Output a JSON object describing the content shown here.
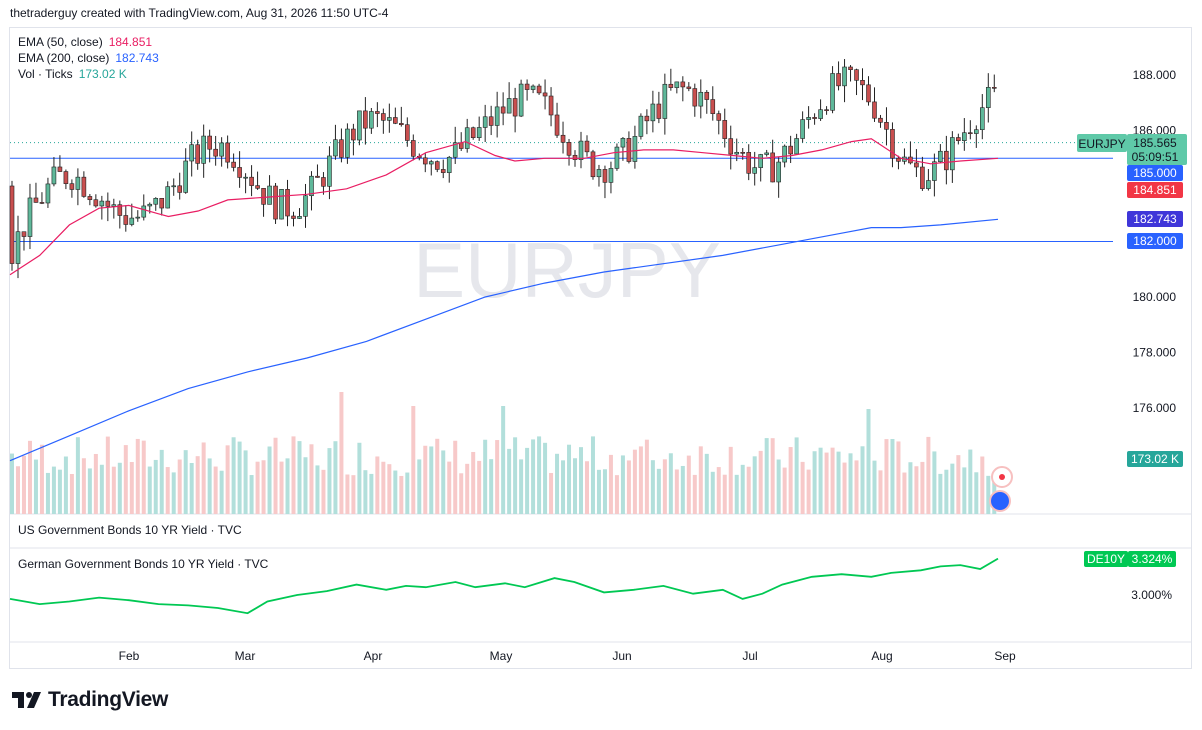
{
  "header": {
    "text": "thetraderguy created with TradingView.com, Aug 31, 2026 11:50 UTC-4"
  },
  "watermark": "EURJPY",
  "legend": [
    {
      "label": "EMA (50, close)",
      "value": "184.851",
      "color": "#e91e63"
    },
    {
      "label": "EMA (200, close)",
      "value": "182.743",
      "color": "#2962ff"
    },
    {
      "label": "Vol · Ticks",
      "value": "173.02 K",
      "color": "#26a69a"
    }
  ],
  "pane2_title": "US Government Bonds 10 YR Yield · TVC",
  "pane3_title": "German Government Bonds 10 YR Yield · TVC",
  "logo": {
    "text": "TradingView",
    "icon": "tradingview-logo-icon"
  },
  "price_axis": {
    "ticks": [
      "188.000",
      "186.000",
      "180.000",
      "178.000",
      "176.000"
    ]
  },
  "yield_axis": {
    "ticks": [
      "3.000%"
    ]
  },
  "time_axis": {
    "ticks": [
      "Feb",
      "Mar",
      "Apr",
      "May",
      "Jun",
      "Jul",
      "Aug",
      "Sep"
    ]
  },
  "labels": {
    "symbol": {
      "name": "EURJPY",
      "price": "185.565",
      "countdown": "05:09:51",
      "color": "#5fc9a8"
    },
    "level_185": {
      "text": "185.000",
      "color": "#2962ff"
    },
    "ema50": {
      "text": "184.851",
      "color": "#f23645"
    },
    "ema200": {
      "text": "182.743",
      "color": "#3f36d9"
    },
    "level_182": {
      "text": "182.000",
      "color": "#2962ff"
    },
    "volume": {
      "text": "173.02 K",
      "color": "#26a69a"
    },
    "de10y": {
      "name": "DE10Y",
      "value": "3.324%",
      "color": "#00c853"
    }
  },
  "chart_data": [
    {
      "type": "candlestick",
      "symbol": "EURJPY",
      "x_range": [
        "2026-01",
        "2026-08-31"
      ],
      "ylim": [
        173.0,
        189.0
      ],
      "horizontal_lines": [
        185.0,
        182.0
      ],
      "indicators": [
        {
          "name": "EMA (50, close)",
          "last": 184.851,
          "points": [
            [
              0,
              180.8
            ],
            [
              30,
              181.5
            ],
            [
              60,
              182.6
            ],
            [
              90,
              183.2
            ],
            [
              120,
              183.3
            ],
            [
              150,
              183.0
            ],
            [
              160,
              182.9
            ],
            [
              190,
              183.1
            ],
            [
              220,
              183.5
            ],
            [
              260,
              183.6
            ],
            [
              300,
              183.7
            ],
            [
              340,
              183.9
            ],
            [
              380,
              184.4
            ],
            [
              420,
              185.2
            ],
            [
              460,
              185.6
            ],
            [
              490,
              185.1
            ],
            [
              510,
              184.9
            ],
            [
              540,
              185.0
            ],
            [
              580,
              185.0
            ],
            [
              610,
              185.2
            ],
            [
              640,
              185.3
            ],
            [
              670,
              185.3
            ],
            [
              700,
              185.2
            ],
            [
              730,
              185.1
            ],
            [
              760,
              185.0
            ],
            [
              790,
              185.1
            ],
            [
              820,
              185.3
            ],
            [
              850,
              185.6
            ],
            [
              870,
              185.7
            ],
            [
              900,
              185.0
            ],
            [
              930,
              184.8
            ],
            [
              960,
              184.9
            ],
            [
              998,
              185.0
            ]
          ]
        },
        {
          "name": "EMA (200, close)",
          "last": 182.743,
          "points": [
            [
              0,
              174.1
            ],
            [
              60,
              175.0
            ],
            [
              120,
              175.9
            ],
            [
              180,
              176.7
            ],
            [
              240,
              177.3
            ],
            [
              300,
              177.8
            ],
            [
              360,
              178.4
            ],
            [
              420,
              179.2
            ],
            [
              480,
              180.0
            ],
            [
              540,
              180.5
            ],
            [
              600,
              180.9
            ],
            [
              660,
              181.2
            ],
            [
              720,
              181.5
            ],
            [
              780,
              181.9
            ],
            [
              840,
              182.3
            ],
            [
              870,
              182.5
            ],
            [
              900,
              182.5
            ],
            [
              940,
              182.6
            ],
            [
              998,
              182.8
            ]
          ]
        }
      ]
    },
    {
      "type": "bar",
      "name": "Vol · Ticks",
      "last": "173.02 K"
    },
    {
      "type": "line",
      "name": "DE10Y",
      "last": "3.324%",
      "points": [
        [
          0,
          2.97
        ],
        [
          30,
          2.93
        ],
        [
          60,
          2.95
        ],
        [
          90,
          2.98
        ],
        [
          120,
          2.96
        ],
        [
          150,
          2.93
        ],
        [
          180,
          2.92
        ],
        [
          210,
          2.9
        ],
        [
          240,
          2.86
        ],
        [
          260,
          2.95
        ],
        [
          290,
          3.0
        ],
        [
          320,
          3.03
        ],
        [
          350,
          3.08
        ],
        [
          380,
          3.04
        ],
        [
          400,
          3.07
        ],
        [
          420,
          3.06
        ],
        [
          450,
          3.1
        ],
        [
          470,
          3.06
        ],
        [
          500,
          3.09
        ],
        [
          520,
          3.06
        ],
        [
          550,
          3.13
        ],
        [
          570,
          3.1
        ],
        [
          600,
          3.02
        ],
        [
          630,
          3.04
        ],
        [
          660,
          3.07
        ],
        [
          690,
          3.01
        ],
        [
          720,
          3.04
        ],
        [
          740,
          2.97
        ],
        [
          760,
          3.01
        ],
        [
          780,
          3.08
        ],
        [
          810,
          3.14
        ],
        [
          840,
          3.16
        ],
        [
          870,
          3.14
        ],
        [
          890,
          3.17
        ],
        [
          920,
          3.19
        ],
        [
          940,
          3.22
        ],
        [
          960,
          3.23
        ],
        [
          980,
          3.2
        ],
        [
          998,
          3.28
        ]
      ]
    }
  ]
}
